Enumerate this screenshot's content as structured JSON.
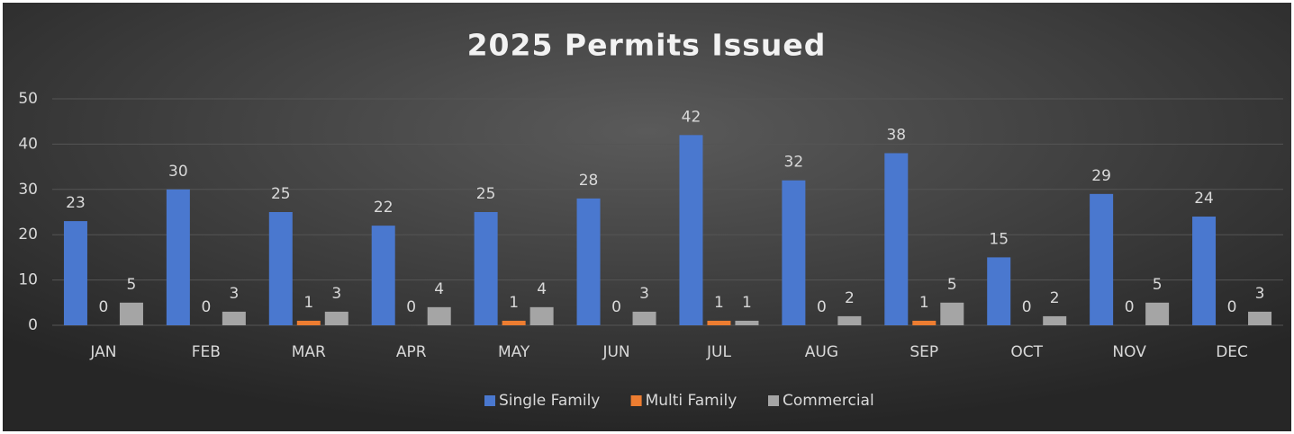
{
  "chart_data": {
    "type": "bar",
    "title": "2025 Permits Issued",
    "categories": [
      "JAN",
      "FEB",
      "MAR",
      "APR",
      "MAY",
      "JUN",
      "JUL",
      "AUG",
      "SEP",
      "OCT",
      "NOV",
      "DEC"
    ],
    "series": [
      {
        "name": "Single Family",
        "color": "#4a78cf",
        "values": [
          23,
          30,
          25,
          22,
          25,
          28,
          42,
          32,
          38,
          15,
          29,
          24
        ]
      },
      {
        "name": "Multi Family",
        "color": "#ed7d31",
        "values": [
          0,
          0,
          1,
          0,
          1,
          0,
          1,
          0,
          1,
          0,
          0,
          0
        ]
      },
      {
        "name": "Commercial",
        "color": "#a5a5a5",
        "values": [
          5,
          3,
          3,
          4,
          4,
          3,
          1,
          2,
          5,
          2,
          5,
          3
        ]
      }
    ],
    "ylim": [
      0,
      50
    ],
    "yticks": [
      0,
      10,
      20,
      30,
      40,
      50
    ],
    "grid": true,
    "legend": "bottom"
  }
}
